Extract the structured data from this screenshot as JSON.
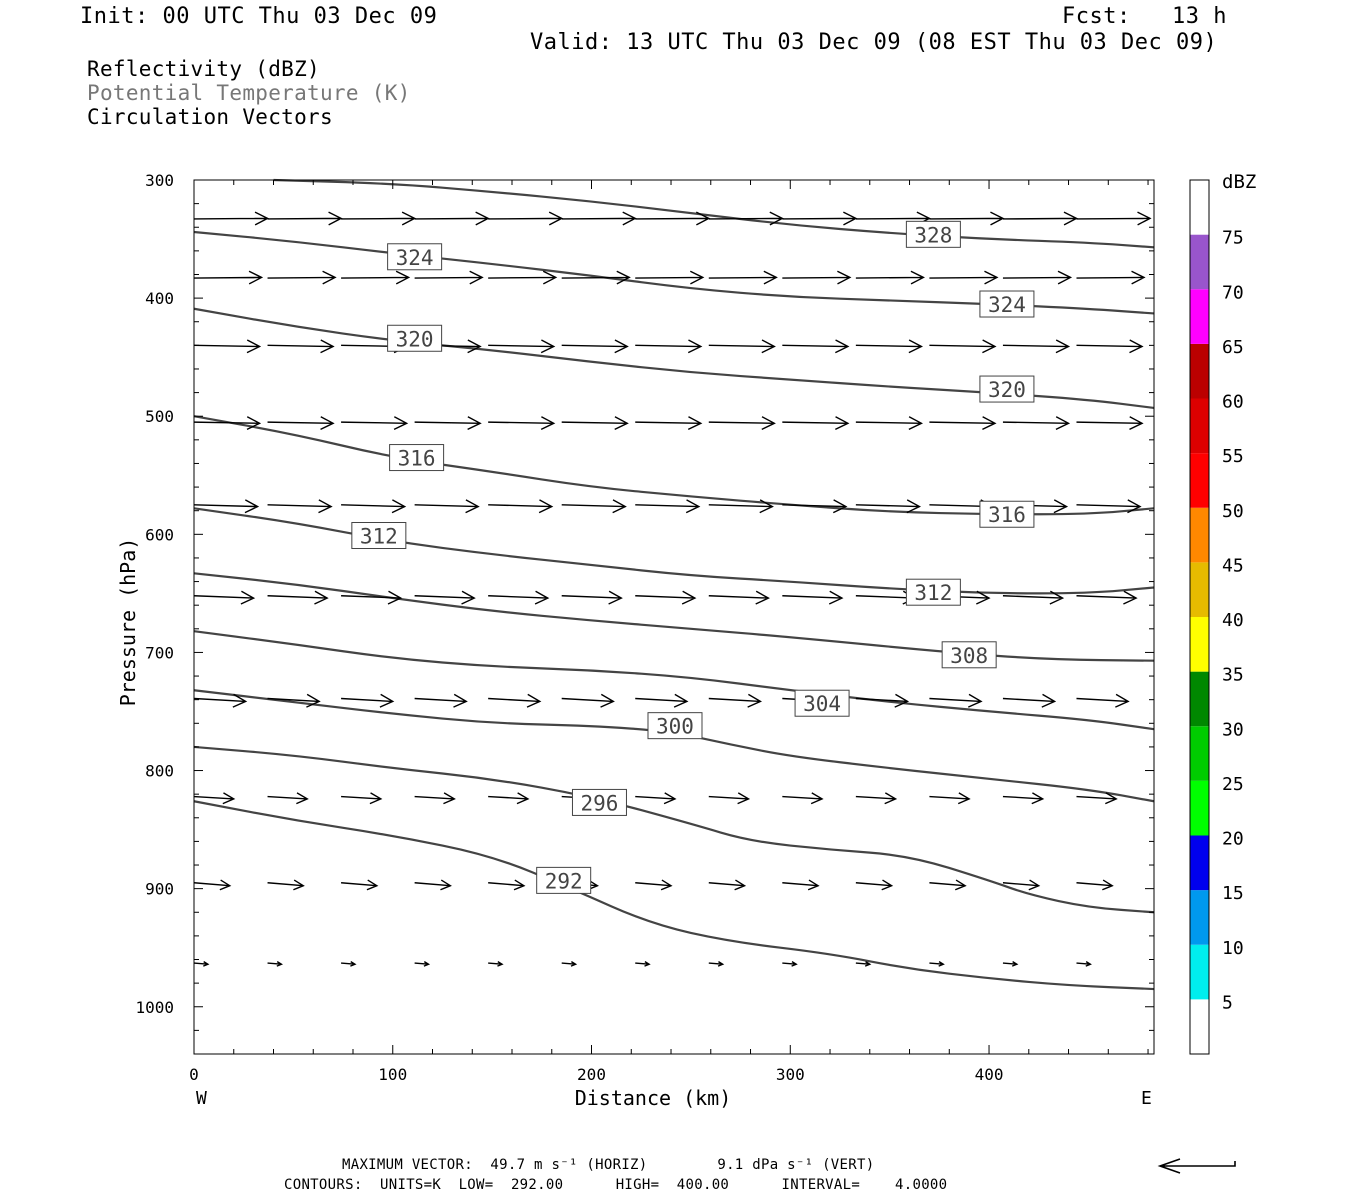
{
  "header": {
    "init": "Init: 00 UTC Thu 03 Dec 09",
    "fcst": "Fcst:   13 h",
    "valid": "Valid: 13 UTC Thu 03 Dec 09 (08 EST Thu 03 Dec 09)"
  },
  "fields": {
    "reflectivity": "Reflectivity (dBZ)",
    "potential_temperature": "Potential Temperature (K)",
    "circulation": "Circulation Vectors"
  },
  "footer": {
    "max_vector": "MAXIMUM VECTOR:  49.7 m s⁻¹ (HORIZ)        9.1 dPa s⁻¹ (VERT)",
    "contours": "CONTOURS:  UNITS=K  LOW=  292.00      HIGH=  400.00      INTERVAL=    4.0000"
  },
  "colors": {
    "contour": "#444444",
    "vector": "#000000"
  },
  "chart_data": {
    "type": "cross-section",
    "xlabel": "Distance (km)",
    "ylabel": "Pressure (hPa)",
    "xlim": [
      0,
      483
    ],
    "ylim": [
      1040,
      300
    ],
    "x_ticks": [
      0,
      100,
      200,
      300,
      400
    ],
    "y_ticks": [
      300,
      400,
      500,
      600,
      700,
      800,
      900,
      1000
    ],
    "x_end_labels": {
      "left": "W",
      "right": "E"
    },
    "grid": false,
    "colorbar": {
      "label": "dBZ",
      "bins": [
        {
          "from": 0,
          "to": 5,
          "color": "#ffffff"
        },
        {
          "from": 5,
          "to": 10,
          "color": "#00eeee"
        },
        {
          "from": 10,
          "to": 15,
          "color": "#0099ee"
        },
        {
          "from": 15,
          "to": 20,
          "color": "#0000ee"
        },
        {
          "from": 20,
          "to": 25,
          "color": "#00ff00"
        },
        {
          "from": 25,
          "to": 30,
          "color": "#00cc00"
        },
        {
          "from": 30,
          "to": 35,
          "color": "#008800"
        },
        {
          "from": 35,
          "to": 40,
          "color": "#ffff00"
        },
        {
          "from": 40,
          "to": 45,
          "color": "#e6bb00"
        },
        {
          "from": 45,
          "to": 50,
          "color": "#ff8800"
        },
        {
          "from": 50,
          "to": 55,
          "color": "#ff0000"
        },
        {
          "from": 55,
          "to": 60,
          "color": "#dd0000"
        },
        {
          "from": 60,
          "to": 65,
          "color": "#bb0000"
        },
        {
          "from": 65,
          "to": 70,
          "color": "#ff00ff"
        },
        {
          "from": 70,
          "to": 75,
          "color": "#9955cc"
        },
        {
          "from": 75,
          "to": 80,
          "color": "#ffffff"
        }
      ],
      "tick_labels": [
        5,
        10,
        15,
        20,
        25,
        30,
        35,
        40,
        45,
        50,
        55,
        60,
        65,
        70,
        75
      ]
    },
    "isentropes": [
      {
        "theta": 292,
        "points": [
          [
            0,
            826
          ],
          [
            50,
            842
          ],
          [
            100,
            855
          ],
          [
            150,
            872
          ],
          [
            190,
            900
          ],
          [
            230,
            930
          ],
          [
            270,
            945
          ],
          [
            320,
            955
          ],
          [
            360,
            968
          ],
          [
            400,
            976
          ],
          [
            440,
            982
          ],
          [
            483,
            985
          ]
        ],
        "label_positions": [
          [
            186,
            893
          ]
        ]
      },
      {
        "theta": 296,
        "points": [
          [
            0,
            780
          ],
          [
            50,
            787
          ],
          [
            100,
            798
          ],
          [
            150,
            807
          ],
          [
            200,
            822
          ],
          [
            250,
            845
          ],
          [
            280,
            860
          ],
          [
            320,
            867
          ],
          [
            360,
            872
          ],
          [
            400,
            893
          ],
          [
            420,
            905
          ],
          [
            450,
            916
          ],
          [
            483,
            920
          ]
        ],
        "label_positions": [
          [
            204,
            827
          ]
        ]
      },
      {
        "theta": 300,
        "points": [
          [
            0,
            732
          ],
          [
            50,
            742
          ],
          [
            100,
            752
          ],
          [
            150,
            760
          ],
          [
            200,
            762
          ],
          [
            240,
            767
          ],
          [
            270,
            778
          ],
          [
            300,
            788
          ],
          [
            350,
            798
          ],
          [
            400,
            807
          ],
          [
            450,
            816
          ],
          [
            483,
            826
          ]
        ],
        "label_positions": [
          [
            242,
            762
          ]
        ]
      },
      {
        "theta": 304,
        "points": [
          [
            0,
            682
          ],
          [
            50,
            693
          ],
          [
            100,
            705
          ],
          [
            150,
            712
          ],
          [
            200,
            715
          ],
          [
            250,
            721
          ],
          [
            300,
            732
          ],
          [
            350,
            742
          ],
          [
            400,
            750
          ],
          [
            450,
            757
          ],
          [
            483,
            765
          ]
        ],
        "label_positions": [
          [
            316,
            743
          ]
        ]
      },
      {
        "theta": 308,
        "points": [
          [
            0,
            633
          ],
          [
            50,
            642
          ],
          [
            100,
            654
          ],
          [
            150,
            665
          ],
          [
            200,
            673
          ],
          [
            250,
            680
          ],
          [
            300,
            687
          ],
          [
            380,
            700
          ],
          [
            430,
            706
          ],
          [
            483,
            707
          ]
        ],
        "label_positions": [
          [
            390,
            702
          ]
        ]
      },
      {
        "theta": 312,
        "points": [
          [
            0,
            578
          ],
          [
            50,
            590
          ],
          [
            100,
            606
          ],
          [
            150,
            617
          ],
          [
            200,
            626
          ],
          [
            250,
            635
          ],
          [
            300,
            640
          ],
          [
            350,
            646
          ],
          [
            400,
            650
          ],
          [
            450,
            650
          ],
          [
            483,
            645
          ]
        ],
        "label_positions": [
          [
            93,
            601
          ],
          [
            372,
            649
          ]
        ]
      },
      {
        "theta": 316,
        "points": [
          [
            0,
            500
          ],
          [
            50,
            515
          ],
          [
            100,
            535
          ],
          [
            150,
            547
          ],
          [
            200,
            560
          ],
          [
            250,
            568
          ],
          [
            300,
            575
          ],
          [
            350,
            581
          ],
          [
            400,
            583
          ],
          [
            450,
            583
          ],
          [
            483,
            578
          ]
        ],
        "label_positions": [
          [
            112,
            535
          ],
          [
            409,
            583
          ]
        ]
      },
      {
        "theta": 320,
        "points": [
          [
            0,
            409
          ],
          [
            50,
            424
          ],
          [
            100,
            436
          ],
          [
            150,
            444
          ],
          [
            200,
            454
          ],
          [
            250,
            463
          ],
          [
            300,
            469
          ],
          [
            350,
            475
          ],
          [
            400,
            480
          ],
          [
            450,
            486
          ],
          [
            483,
            493
          ]
        ],
        "label_positions": [
          [
            111,
            434
          ],
          [
            409,
            477
          ]
        ]
      },
      {
        "theta": 324,
        "points": [
          [
            0,
            344
          ],
          [
            50,
            352
          ],
          [
            100,
            362
          ],
          [
            150,
            371
          ],
          [
            200,
            381
          ],
          [
            250,
            392
          ],
          [
            300,
            399
          ],
          [
            350,
            402
          ],
          [
            400,
            405
          ],
          [
            450,
            409
          ],
          [
            483,
            413
          ]
        ],
        "label_positions": [
          [
            111,
            365
          ],
          [
            409,
            405
          ]
        ]
      },
      {
        "theta": 328,
        "points": [
          [
            40,
            300
          ],
          [
            100,
            303
          ],
          [
            150,
            310
          ],
          [
            200,
            318
          ],
          [
            250,
            328
          ],
          [
            300,
            338
          ],
          [
            350,
            345
          ],
          [
            400,
            350
          ],
          [
            450,
            353
          ],
          [
            483,
            357
          ]
        ],
        "label_positions": [
          [
            372,
            346
          ]
        ]
      }
    ],
    "vector_rows": [
      {
        "p": 333,
        "tail_dp": -1,
        "tail_x": [
          0,
          37,
          74,
          111,
          148,
          185,
          222,
          259,
          296,
          333,
          370,
          407,
          444
        ],
        "dx": 37
      },
      {
        "p": 383,
        "tail_dp": -1,
        "tail_x": [
          0,
          37,
          74,
          111,
          148,
          185,
          222,
          259,
          296,
          333,
          370,
          407,
          444
        ],
        "dx": 34
      },
      {
        "p": 440,
        "tail_dp": 2,
        "tail_x": [
          0,
          37,
          74,
          111,
          148,
          185,
          222,
          259,
          296,
          333,
          370,
          407,
          444
        ],
        "dx": 33
      },
      {
        "p": 505,
        "tail_dp": 2,
        "tail_x": [
          0,
          37,
          74,
          111,
          148,
          185,
          222,
          259,
          296,
          333,
          370,
          407,
          444
        ],
        "dx": 33
      },
      {
        "p": 575,
        "tail_dp": 3,
        "tail_x": [
          0,
          37,
          74,
          111,
          148,
          185,
          222,
          259,
          296,
          333,
          370,
          407,
          444
        ],
        "dx": 32
      },
      {
        "p": 652,
        "tail_dp": 4,
        "tail_x": [
          0,
          37,
          74,
          111,
          148,
          185,
          222,
          259,
          296,
          333,
          370,
          407,
          444
        ],
        "dx": 30
      },
      {
        "p": 739,
        "tail_dp": 5,
        "tail_x": [
          0,
          37,
          74,
          111,
          148,
          185,
          222,
          259,
          296,
          333,
          370,
          407,
          444
        ],
        "dx": 26
      },
      {
        "p": 822,
        "tail_dp": 4,
        "tail_x": [
          0,
          37,
          74,
          111,
          148,
          185,
          222,
          259,
          296,
          333,
          370,
          407,
          444
        ],
        "dx": 20
      },
      {
        "p": 895,
        "tail_dp": 5,
        "tail_x": [
          0,
          37,
          74,
          111,
          148,
          185,
          222,
          259,
          296,
          333,
          370,
          407,
          444
        ],
        "dx": 18
      },
      {
        "p": 963,
        "tail_dp": 2,
        "tail_x": [
          0,
          37,
          74,
          111,
          148,
          185,
          222,
          259,
          296,
          333,
          370,
          407,
          444
        ],
        "dx": 7
      }
    ],
    "reference_vector": {
      "speed": 49.7,
      "direction": "westward"
    }
  }
}
